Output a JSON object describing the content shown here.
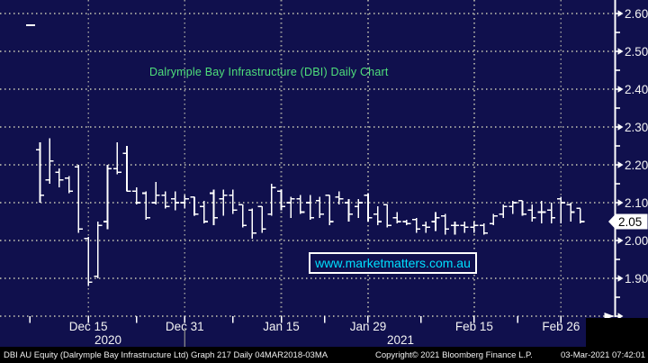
{
  "chart": {
    "title": "Dalrymple Bay Infrastructure (DBI) Daily Chart",
    "watermark_link": "www.marketmatters.com.au",
    "colors": {
      "background": "#10104d",
      "grid": "#9c9c9c",
      "bars": "#ffffff",
      "title_green": "#4fdf7b",
      "link_cyan": "#00e0ff",
      "axis_text": "#f2f2f2",
      "footer_bg": "#000000",
      "price_tag_bg": "#ffffff",
      "price_tag_text": "#000000"
    }
  },
  "footer": {
    "left": "DBI AU Equity (Dalrymple Bay Infrastructure Ltd) Graph 217  Daily 04MAR2018-03MA",
    "copyright": "Copyright© 2021 Bloomberg Finance L.P.",
    "datetime": "03-Mar-2021 07:42:01"
  },
  "chart_data": {
    "type": "ohlc_bar",
    "title": "Dalrymple Bay Infrastructure (DBI) Daily Chart",
    "grid": true,
    "legend": "none",
    "ylim": [
      1.8,
      2.62
    ],
    "y_tick_labels": [
      "2.60",
      "2.50",
      "2.40",
      "2.30",
      "2.20",
      "2.10",
      "2.00",
      "1.90"
    ],
    "y_tick_values": [
      2.6,
      2.5,
      2.4,
      2.3,
      2.2,
      2.1,
      2.0,
      1.9
    ],
    "y_minor_tick_values": [
      2.55,
      2.45,
      2.35,
      2.25,
      2.15,
      2.05,
      1.95,
      1.85
    ],
    "y_unlabeled_major_tick": 1.8,
    "last_price": 2.05,
    "last_price_label": "2.05",
    "x_ticks": [
      {
        "label": "Dec 15",
        "bar_index": 5
      },
      {
        "label": "Dec 31",
        "bar_index": 15
      },
      {
        "label": "Jan 15",
        "bar_index": 25
      },
      {
        "label": "Jan 29",
        "bar_index": 34
      },
      {
        "label": "Feb 15",
        "bar_index": 45
      },
      {
        "label": "Feb 26",
        "bar_index": 54
      }
    ],
    "year_labels": [
      {
        "text": "2020"
      },
      {
        "text": "2021"
      }
    ],
    "year_divider_after_tick": "Dec 31",
    "bars_format": [
      "open",
      "high",
      "low",
      "close"
    ],
    "bars": [
      [
        2.24,
        2.26,
        2.1,
        2.12
      ],
      [
        2.16,
        2.27,
        2.15,
        2.21
      ],
      [
        2.18,
        2.19,
        2.14,
        2.16
      ],
      [
        2.165,
        2.17,
        2.125,
        2.13
      ],
      [
        2.195,
        2.2,
        2.02,
        2.03
      ],
      [
        2.005,
        2.01,
        1.88,
        1.89
      ],
      [
        1.905,
        2.05,
        1.9,
        2.04
      ],
      [
        2.05,
        2.2,
        2.03,
        2.19
      ],
      [
        2.19,
        2.26,
        2.175,
        2.18
      ],
      [
        2.23,
        2.25,
        2.13,
        2.13
      ],
      [
        2.13,
        2.14,
        2.095,
        2.1
      ],
      [
        2.125,
        2.13,
        2.055,
        2.06
      ],
      [
        2.1,
        2.155,
        2.095,
        2.12
      ],
      [
        2.12,
        2.13,
        2.085,
        2.09
      ],
      [
        2.11,
        2.13,
        2.08,
        2.1
      ],
      [
        2.1,
        2.12,
        2.085,
        2.11
      ],
      [
        2.115,
        2.115,
        2.065,
        2.07
      ],
      [
        2.09,
        2.105,
        2.045,
        2.05
      ],
      [
        2.125,
        2.135,
        2.04,
        2.06
      ],
      [
        2.11,
        2.135,
        2.065,
        2.12
      ],
      [
        2.12,
        2.135,
        2.07,
        2.08
      ],
      [
        2.095,
        2.095,
        2.035,
        2.04
      ],
      [
        2.08,
        2.085,
        2.005,
        2.02
      ],
      [
        2.09,
        2.09,
        2.02,
        2.03
      ],
      [
        2.07,
        2.15,
        2.065,
        2.14
      ],
      [
        2.13,
        2.135,
        2.08,
        2.09
      ],
      [
        2.1,
        2.115,
        2.06,
        2.11
      ],
      [
        2.11,
        2.12,
        2.07,
        2.075
      ],
      [
        2.1,
        2.12,
        2.055,
        2.06
      ],
      [
        2.105,
        2.115,
        2.06,
        2.07
      ],
      [
        2.12,
        2.12,
        2.04,
        2.05
      ],
      [
        2.115,
        2.13,
        2.095,
        2.11
      ],
      [
        2.1,
        2.11,
        2.05,
        2.07
      ],
      [
        2.09,
        2.11,
        2.06,
        2.1
      ],
      [
        2.12,
        2.125,
        2.05,
        2.06
      ],
      [
        2.07,
        2.09,
        2.04,
        2.05
      ],
      [
        2.095,
        2.095,
        2.035,
        2.04
      ],
      [
        2.06,
        2.075,
        2.045,
        2.05
      ],
      [
        2.05,
        2.055,
        2.04,
        2.045
      ],
      [
        2.055,
        2.06,
        2.02,
        2.03
      ],
      [
        2.04,
        2.05,
        2.02,
        2.035
      ],
      [
        2.05,
        2.075,
        2.025,
        2.06
      ],
      [
        2.065,
        2.07,
        2.015,
        2.03
      ],
      [
        2.04,
        2.05,
        2.015,
        2.04
      ],
      [
        2.04,
        2.05,
        2.02,
        2.035
      ],
      [
        2.035,
        2.05,
        2.02,
        2.04
      ],
      [
        2.04,
        2.045,
        2.015,
        2.02
      ],
      [
        2.045,
        2.07,
        2.04,
        2.065
      ],
      [
        2.07,
        2.095,
        2.06,
        2.09
      ],
      [
        2.09,
        2.105,
        2.07,
        2.1
      ],
      [
        2.105,
        2.105,
        2.065,
        2.07
      ],
      [
        2.08,
        2.095,
        2.05,
        2.06
      ],
      [
        2.075,
        2.105,
        2.045,
        2.075
      ],
      [
        2.08,
        2.1,
        2.045,
        2.06
      ],
      [
        2.11,
        2.115,
        2.045,
        2.1
      ],
      [
        2.095,
        2.1,
        2.05,
        2.075
      ],
      [
        2.085,
        2.085,
        2.045,
        2.05
      ]
    ]
  }
}
